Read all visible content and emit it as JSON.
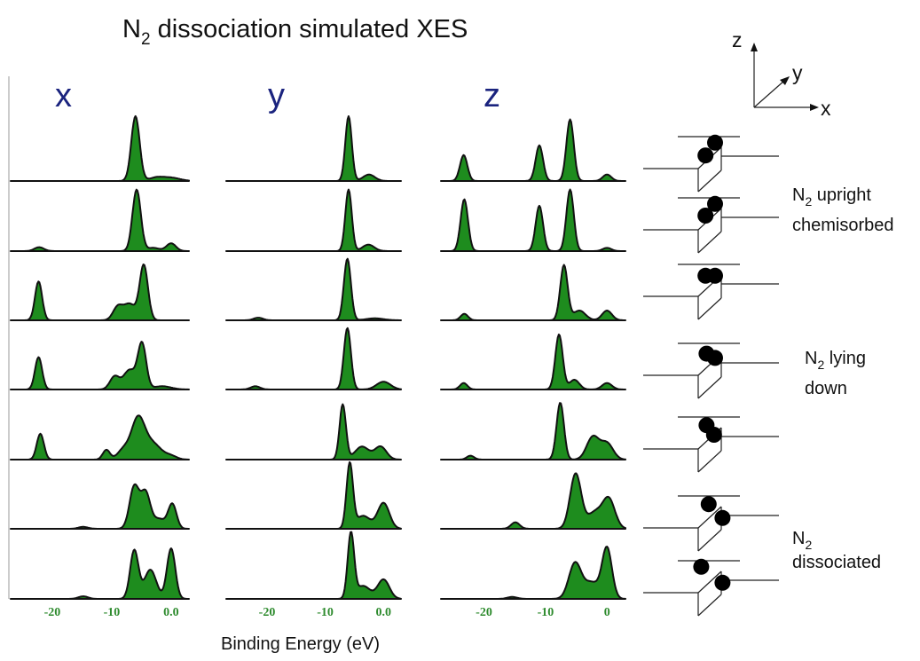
{
  "chart_data": {
    "type": "area",
    "title_main": "N",
    "title_sub": "2",
    "title_rest": " dissociation simulated XES",
    "xlabel": "Binding Energy (eV)",
    "xlim": [
      -27,
      3
    ],
    "x_reversed": false,
    "rows": 7,
    "panels": [
      {
        "name": "x",
        "tick_labels": [
          "-20",
          "-10",
          "0.0"
        ],
        "tick_values": [
          -20,
          -10,
          0
        ]
      },
      {
        "name": "y",
        "tick_labels": [
          "-20",
          "-10",
          "0.0"
        ],
        "tick_values": [
          -20,
          -10,
          0
        ]
      },
      {
        "name": "z",
        "tick_labels": [
          "-20",
          "-10",
          "0"
        ],
        "tick_values": [
          -20,
          -10,
          0
        ]
      }
    ],
    "spectra": [
      [
        [
          {
            "c": -6.0,
            "w": 0.7,
            "a": 1.0
          },
          {
            "c": -2.5,
            "w": 1.2,
            "a": 0.05
          },
          {
            "c": 0.0,
            "w": 1.5,
            "a": 0.05
          }
        ],
        [
          {
            "c": -22.2,
            "w": 0.8,
            "a": 0.06
          },
          {
            "c": -5.8,
            "w": 0.7,
            "a": 0.95
          },
          {
            "c": -3.0,
            "w": 1.0,
            "a": 0.05
          },
          {
            "c": 0.0,
            "w": 0.8,
            "a": 0.12
          }
        ],
        [
          {
            "c": -22.3,
            "w": 0.6,
            "a": 0.6
          },
          {
            "c": -9.0,
            "w": 0.8,
            "a": 0.2
          },
          {
            "c": -7.0,
            "w": 1.0,
            "a": 0.25
          },
          {
            "c": -4.6,
            "w": 0.7,
            "a": 0.85
          }
        ],
        [
          {
            "c": -22.3,
            "w": 0.6,
            "a": 0.5
          },
          {
            "c": -9.5,
            "w": 0.8,
            "a": 0.2
          },
          {
            "c": -7.0,
            "w": 1.0,
            "a": 0.3
          },
          {
            "c": -4.9,
            "w": 0.7,
            "a": 0.7
          },
          {
            "c": -1.5,
            "w": 1.5,
            "a": 0.05
          }
        ],
        [
          {
            "c": -22.0,
            "w": 0.6,
            "a": 0.4
          },
          {
            "c": -10.9,
            "w": 0.6,
            "a": 0.15
          },
          {
            "c": -8.0,
            "w": 1.0,
            "a": 0.15
          },
          {
            "c": -5.6,
            "w": 1.1,
            "a": 0.6
          },
          {
            "c": -3.2,
            "w": 1.5,
            "a": 0.25
          },
          {
            "c": 0.0,
            "w": 1.0,
            "a": 0.05
          }
        ],
        [
          {
            "c": -14.8,
            "w": 0.8,
            "a": 0.03
          },
          {
            "c": -6.2,
            "w": 0.8,
            "a": 0.65
          },
          {
            "c": -4.3,
            "w": 0.8,
            "a": 0.55
          },
          {
            "c": -2.0,
            "w": 1.0,
            "a": 0.15
          },
          {
            "c": 0.2,
            "w": 0.7,
            "a": 0.38
          }
        ],
        [
          {
            "c": -14.8,
            "w": 0.8,
            "a": 0.04
          },
          {
            "c": -6.2,
            "w": 0.7,
            "a": 0.75
          },
          {
            "c": -3.5,
            "w": 1.0,
            "a": 0.45
          },
          {
            "c": 0.0,
            "w": 0.7,
            "a": 0.78
          }
        ]
      ],
      [
        [
          {
            "c": -6.0,
            "w": 0.55,
            "a": 1.0
          },
          {
            "c": -2.5,
            "w": 1.0,
            "a": 0.1
          }
        ],
        [
          {
            "c": -6.0,
            "w": 0.55,
            "a": 0.95
          },
          {
            "c": -2.6,
            "w": 1.0,
            "a": 0.1
          }
        ],
        [
          {
            "c": -21.5,
            "w": 0.8,
            "a": 0.04
          },
          {
            "c": -6.2,
            "w": 0.6,
            "a": 0.95
          },
          {
            "c": -1.5,
            "w": 1.5,
            "a": 0.03
          }
        ],
        [
          {
            "c": -22.0,
            "w": 0.8,
            "a": 0.05
          },
          {
            "c": -6.2,
            "w": 0.6,
            "a": 0.95
          },
          {
            "c": 0.0,
            "w": 1.2,
            "a": 0.12
          }
        ],
        [
          {
            "c": -7.0,
            "w": 0.55,
            "a": 0.85
          },
          {
            "c": -3.7,
            "w": 1.2,
            "a": 0.2
          },
          {
            "c": -0.5,
            "w": 1.0,
            "a": 0.2
          }
        ],
        [
          {
            "c": -5.8,
            "w": 0.55,
            "a": 1.0
          },
          {
            "c": -3.5,
            "w": 1.2,
            "a": 0.2
          },
          {
            "c": 0.0,
            "w": 1.0,
            "a": 0.4
          }
        ],
        [
          {
            "c": -5.6,
            "w": 0.55,
            "a": 1.0
          },
          {
            "c": -3.5,
            "w": 1.2,
            "a": 0.2
          },
          {
            "c": 0.0,
            "w": 1.0,
            "a": 0.3
          }
        ]
      ],
      [
        [
          {
            "c": -23.3,
            "w": 0.6,
            "a": 0.4
          },
          {
            "c": -11.0,
            "w": 0.6,
            "a": 0.55
          },
          {
            "c": -6.0,
            "w": 0.6,
            "a": 0.95
          },
          {
            "c": 0.0,
            "w": 0.7,
            "a": 0.1
          }
        ],
        [
          {
            "c": -23.2,
            "w": 0.6,
            "a": 0.8
          },
          {
            "c": -11.0,
            "w": 0.6,
            "a": 0.7
          },
          {
            "c": -6.0,
            "w": 0.6,
            "a": 0.95
          },
          {
            "c": 0.0,
            "w": 0.7,
            "a": 0.05
          }
        ],
        [
          {
            "c": -23.2,
            "w": 0.6,
            "a": 0.1
          },
          {
            "c": -7.0,
            "w": 0.6,
            "a": 0.85
          },
          {
            "c": -4.5,
            "w": 1.0,
            "a": 0.15
          },
          {
            "c": 0.0,
            "w": 0.8,
            "a": 0.15
          }
        ],
        [
          {
            "c": -23.3,
            "w": 0.6,
            "a": 0.1
          },
          {
            "c": -7.8,
            "w": 0.6,
            "a": 0.85
          },
          {
            "c": -5.3,
            "w": 0.8,
            "a": 0.15
          },
          {
            "c": 0.0,
            "w": 0.8,
            "a": 0.1
          }
        ],
        [
          {
            "c": -22.2,
            "w": 0.6,
            "a": 0.06
          },
          {
            "c": -7.6,
            "w": 0.6,
            "a": 0.88
          },
          {
            "c": -2.3,
            "w": 1.0,
            "a": 0.35
          },
          {
            "c": 0.0,
            "w": 1.0,
            "a": 0.25
          }
        ],
        [
          {
            "c": -14.9,
            "w": 0.7,
            "a": 0.1
          },
          {
            "c": -5.1,
            "w": 0.9,
            "a": 0.85
          },
          {
            "c": -2.0,
            "w": 1.2,
            "a": 0.25
          },
          {
            "c": 0.3,
            "w": 1.0,
            "a": 0.45
          }
        ],
        [
          {
            "c": -15.4,
            "w": 0.8,
            "a": 0.03
          },
          {
            "c": -5.2,
            "w": 1.0,
            "a": 0.55
          },
          {
            "c": -2.5,
            "w": 1.2,
            "a": 0.25
          },
          {
            "c": 0.0,
            "w": 0.8,
            "a": 0.78
          }
        ]
      ]
    ]
  },
  "axes_legend": {
    "z": "z",
    "y": "y",
    "x": "x"
  },
  "state_labels": [
    {
      "line1_main": "N",
      "line1_sub": "2",
      "line1_rest": " upright",
      "line2": "chemisorbed"
    },
    {
      "line1_main": "N",
      "line1_sub": "2",
      "line1_rest": " lying",
      "line2": "down"
    },
    {
      "line1_main": "N",
      "line1_sub": "2",
      "line1_rest": "",
      "line2": "dissociated"
    }
  ],
  "molecule_states": [
    {
      "a1": [
        0.5,
        -0.6
      ],
      "a2": [
        -0.4,
        0.6
      ]
    },
    {
      "a1": [
        0.5,
        -0.6
      ],
      "a2": [
        -0.4,
        0.5
      ]
    },
    {
      "a1": [
        -0.4,
        -0.1
      ],
      "a2": [
        0.5,
        -0.1
      ]
    },
    {
      "a1": [
        -0.3,
        -0.2
      ],
      "a2": [
        0.5,
        0.2
      ]
    },
    {
      "a1": [
        -0.3,
        -0.4
      ],
      "a2": [
        0.4,
        0.5
      ]
    },
    {
      "a1": [
        -0.1,
        -0.4
      ],
      "a2": [
        1.2,
        0.9
      ]
    },
    {
      "a1": [
        -0.8,
        -0.6
      ],
      "a2": [
        1.2,
        0.9
      ]
    }
  ],
  "colors": {
    "fill": "#1e8c1e",
    "tick": "#2e8b2e",
    "panel_label": "#1a237e"
  }
}
